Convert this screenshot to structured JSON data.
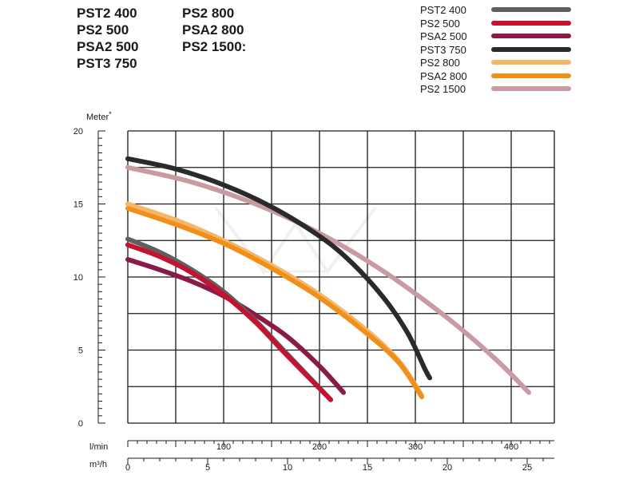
{
  "header": {
    "models_col1": [
      "PST2 400",
      "PS2 500",
      "PSA2 500",
      "PST3 750"
    ],
    "models_col2": [
      "PS2 800",
      "PSA2 800",
      "PS2 1500:"
    ]
  },
  "chart_data": {
    "type": "line",
    "title": "",
    "ylabel": "Meter*",
    "ylim": [
      0,
      20
    ],
    "yticks": [
      0,
      5,
      10,
      15,
      20
    ],
    "xlim": [
      0,
      26.7
    ],
    "x_axis_primary": {
      "label": "l/min",
      "ticks": [
        100,
        200,
        300,
        400
      ]
    },
    "x_axis_secondary": {
      "label": "m³/h",
      "ticks": [
        0,
        5,
        10,
        15,
        20,
        25
      ]
    },
    "legend_position": "top-right",
    "series": [
      {
        "name": "PST2 400",
        "color": "#5f5f5f",
        "x": [
          0,
          2,
          4,
          6,
          8,
          10,
          12.7
        ],
        "y": [
          12.6,
          11.7,
          10.5,
          9.0,
          7.0,
          4.7,
          1.6
        ]
      },
      {
        "name": "PS2 500",
        "color": "#c4122f",
        "x": [
          0,
          2,
          4,
          6,
          8,
          10,
          12.7
        ],
        "y": [
          12.2,
          11.4,
          10.3,
          8.8,
          6.9,
          4.6,
          1.6
        ]
      },
      {
        "name": "PSA2 500",
        "color": "#8a1a48",
        "x": [
          0,
          2,
          4,
          6,
          8,
          10,
          12,
          13.5
        ],
        "y": [
          11.2,
          10.5,
          9.7,
          8.7,
          7.4,
          5.9,
          3.9,
          2.1
        ]
      },
      {
        "name": "PST3 750",
        "color": "#2a2a2a",
        "x": [
          0,
          3,
          6,
          9,
          12,
          14,
          16,
          17.5,
          18.6,
          18.9
        ],
        "y": [
          18.1,
          17.4,
          16.3,
          14.8,
          12.8,
          11.0,
          8.6,
          6.2,
          3.7,
          3.1
        ]
      },
      {
        "name": "PS2 800",
        "color": "#f4b76a",
        "x": [
          0,
          3,
          6,
          9,
          12,
          15,
          17,
          18.4
        ],
        "y": [
          15.0,
          13.9,
          12.5,
          10.8,
          8.8,
          6.3,
          4.2,
          1.9
        ]
      },
      {
        "name": "PSA2 800",
        "color": "#f0901a",
        "x": [
          0,
          3,
          6,
          9,
          12,
          15,
          17,
          18.4
        ],
        "y": [
          14.7,
          13.6,
          12.3,
          10.6,
          8.6,
          6.1,
          4.1,
          1.8
        ]
      },
      {
        "name": "PS2 1500",
        "color": "#c89aa2",
        "x": [
          0,
          4,
          8,
          12,
          16,
          20,
          23,
          25.1
        ],
        "y": [
          17.5,
          16.5,
          15.0,
          13.0,
          10.4,
          7.2,
          4.4,
          2.1
        ]
      }
    ]
  }
}
